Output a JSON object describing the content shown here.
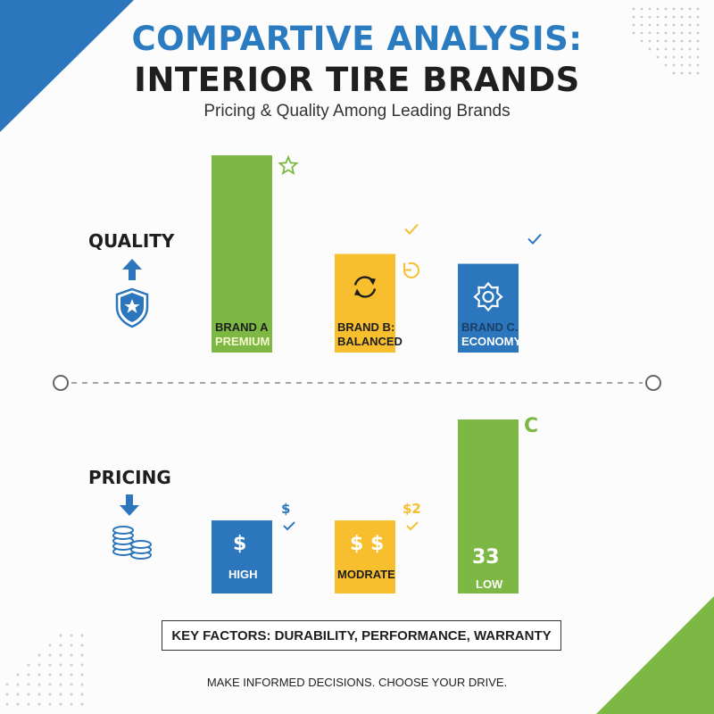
{
  "header": {
    "title_line1": "COMPARTIVE ANALYSIS:",
    "title_line2": "INTERIOR TIRE BRANDS",
    "subtitle": "Pricing & Quality Among Leading Brands"
  },
  "colors": {
    "green": "#7cb843",
    "yellow": "#f7bf2e",
    "blue": "#2b76bd",
    "dark": "#1e1e1e"
  },
  "chart_data": [
    {
      "type": "bar",
      "title": "QUALITY",
      "categories": [
        "BRAND A",
        "BRAND B:",
        "BRAND C."
      ],
      "tiers": [
        "PREMIUM",
        "BALANCED",
        "ECONOMY"
      ],
      "values": [
        1.0,
        0.5,
        0.45
      ],
      "bar_colors": [
        "#7cb843",
        "#f7bf2e",
        "#2b76bd"
      ],
      "bar_icons": [
        "",
        "refresh-icon",
        "gear-icon"
      ],
      "side_icons": [
        "star-icon",
        "check-icon",
        "check-icon"
      ]
    },
    {
      "type": "bar",
      "title": "PRICING",
      "categories": [
        "HIGH",
        "MODRATE",
        "LOW"
      ],
      "bar_marks": [
        "$",
        "$ $",
        "33"
      ],
      "side_marks": [
        "$",
        "$2",
        "C"
      ],
      "values": [
        0.42,
        0.42,
        1.0
      ],
      "bar_colors": [
        "#2b76bd",
        "#f7bf2e",
        "#7cb843"
      ]
    }
  ],
  "key_factors": "KEY FACTORS: DURABILITY, PERFORMANCE, WARRANTY",
  "footer": "MAKE INFORMED DECISIONS. CHOOSE YOUR DRIVE."
}
